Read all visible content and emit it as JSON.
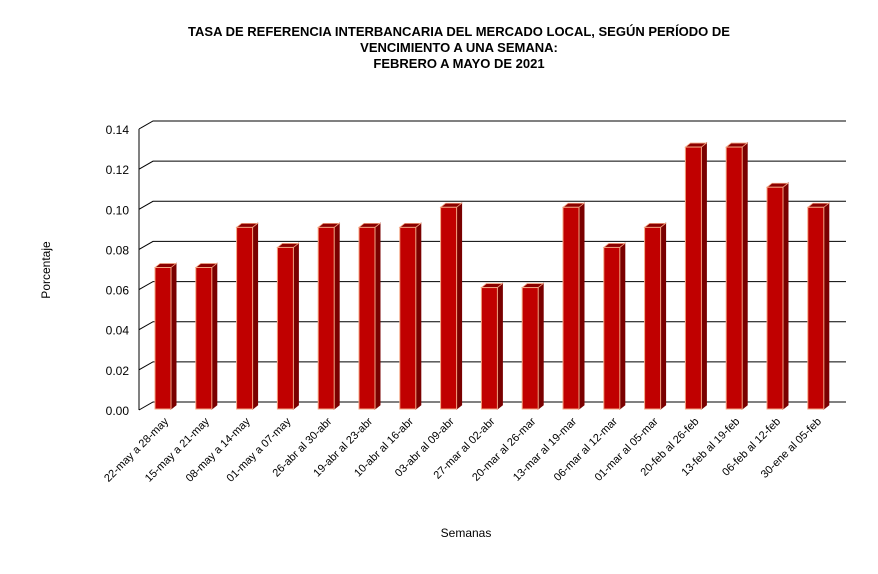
{
  "chart_data": {
    "type": "bar",
    "title": [
      "TASA  DE REFERENCIA INTERBANCARIA DEL MERCADO LOCAL, SEGÚN PERÍODO DE",
      "VENCIMIENTO A UNA SEMANA:",
      "FEBRERO A MAYO DE 2021"
    ],
    "xlabel": "Semanas",
    "ylabel": "Porcentaje",
    "ylim": [
      0,
      0.14
    ],
    "yticks": [
      "0.00",
      "0.02",
      "0.04",
      "0.06",
      "0.08",
      "0.10",
      "0.12",
      "0.14"
    ],
    "grid": true,
    "categories": [
      "22-may a 28-may",
      "15-may a 21-may",
      "08-may a 14-may",
      "01-may a 07-may",
      "26-abr al 30-abr",
      "19-abr al 23-abr",
      "10-abr al 16-abr",
      "03-abr al 09-abr",
      "27-mar al 02-abr",
      "20-mar al 26-mar",
      "13-mar al 19-mar",
      "06-mar al 12-mar",
      "01-mar al 05-mar",
      "20-feb al 26-feb",
      "13-feb al 19-feb",
      "06-feb al 12-feb",
      "30-ene al 05-feb"
    ],
    "values": [
      0.07,
      0.07,
      0.09,
      0.08,
      0.09,
      0.09,
      0.09,
      0.1,
      0.06,
      0.06,
      0.1,
      0.08,
      0.09,
      0.13,
      0.13,
      0.11,
      0.1
    ],
    "colors": {
      "bar": "#c00000",
      "bar_side": "#7a0000",
      "bar_top": "#8b0000",
      "bar_edge": "#f4a582"
    }
  }
}
